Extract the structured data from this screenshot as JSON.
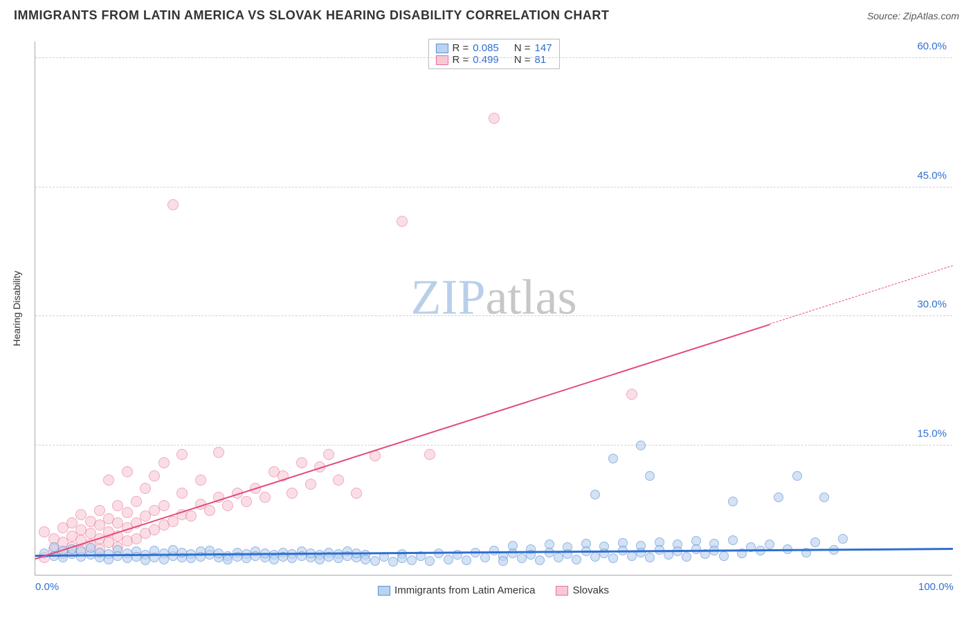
{
  "header": {
    "title": "IMMIGRANTS FROM LATIN AMERICA VS SLOVAK HEARING DISABILITY CORRELATION CHART",
    "source": "Source: ZipAtlas.com"
  },
  "watermark": {
    "text_a": "ZIP",
    "text_b": "atlas",
    "color_a": "#b9cfe9",
    "color_b": "#c7c7c7"
  },
  "axes": {
    "ylabel": "Hearing Disability",
    "xlim": [
      0,
      100
    ],
    "ylim": [
      0,
      62
    ],
    "yticks": [
      {
        "v": 15,
        "l": "15.0%"
      },
      {
        "v": 30,
        "l": "30.0%"
      },
      {
        "v": 45,
        "l": "45.0%"
      },
      {
        "v": 60,
        "l": "60.0%"
      }
    ],
    "xticks": [
      {
        "v": 0,
        "l": "0.0%"
      },
      {
        "v": 100,
        "l": "100.0%"
      }
    ],
    "tick_color": "#2f6fd0",
    "grid_color": "#d0d0d0"
  },
  "legend_top": {
    "rows": [
      {
        "swatch_fill": "#bcd3ef",
        "swatch_stroke": "#5b8fd6",
        "r_label": "R =",
        "r": "0.085",
        "n_label": "N =",
        "n": "147"
      },
      {
        "swatch_fill": "#f7c9d6",
        "swatch_stroke": "#e86f94",
        "r_label": "R =",
        "r": "0.499",
        "n_label": "N =",
        "n": " 81"
      }
    ],
    "label_color": "#333",
    "value_color": "#2f6fd0"
  },
  "legend_bottom": {
    "items": [
      {
        "swatch_fill": "#bcd3ef",
        "swatch_stroke": "#5b8fd6",
        "label": "Immigrants from Latin America"
      },
      {
        "swatch_fill": "#f7c9d6",
        "swatch_stroke": "#e86f94",
        "label": "Slovaks"
      }
    ]
  },
  "series": {
    "blue": {
      "fill": "#bcd3ef",
      "stroke": "#5b8fd6",
      "opacity": 0.65,
      "radius": 7,
      "points": [
        [
          1,
          2.5
        ],
        [
          2,
          2.2
        ],
        [
          2,
          3.2
        ],
        [
          3,
          2
        ],
        [
          3,
          2.8
        ],
        [
          4,
          2.4
        ],
        [
          4,
          3
        ],
        [
          5,
          2.1
        ],
        [
          5,
          2.7
        ],
        [
          6,
          2.3
        ],
        [
          6,
          3.1
        ],
        [
          7,
          2
        ],
        [
          7,
          2.6
        ],
        [
          8,
          2.4
        ],
        [
          8,
          1.8
        ],
        [
          9,
          2.9
        ],
        [
          9,
          2.2
        ],
        [
          10,
          2.5
        ],
        [
          10,
          1.9
        ],
        [
          11,
          2.7
        ],
        [
          11,
          2.1
        ],
        [
          12,
          2.3
        ],
        [
          12,
          1.7
        ],
        [
          13,
          2.8
        ],
        [
          13,
          2
        ],
        [
          14,
          2.5
        ],
        [
          14,
          1.8
        ],
        [
          15,
          2.2
        ],
        [
          15,
          2.9
        ],
        [
          16,
          2
        ],
        [
          16,
          2.6
        ],
        [
          17,
          2.4
        ],
        [
          17,
          1.9
        ],
        [
          18,
          2.7
        ],
        [
          18,
          2.1
        ],
        [
          19,
          2.3
        ],
        [
          19,
          2.8
        ],
        [
          20,
          2
        ],
        [
          20,
          2.5
        ],
        [
          21,
          2.2
        ],
        [
          21,
          1.8
        ],
        [
          22,
          2.6
        ],
        [
          22,
          2.1
        ],
        [
          23,
          2.4
        ],
        [
          23,
          1.9
        ],
        [
          24,
          2.7
        ],
        [
          24,
          2.2
        ],
        [
          25,
          2
        ],
        [
          25,
          2.5
        ],
        [
          26,
          2.3
        ],
        [
          26,
          1.8
        ],
        [
          27,
          2.6
        ],
        [
          27,
          2.1
        ],
        [
          28,
          2.4
        ],
        [
          28,
          1.9
        ],
        [
          29,
          2.7
        ],
        [
          29,
          2.2
        ],
        [
          30,
          2
        ],
        [
          30,
          2.5
        ],
        [
          31,
          2.3
        ],
        [
          31,
          1.8
        ],
        [
          32,
          2.6
        ],
        [
          32,
          2.1
        ],
        [
          33,
          2.4
        ],
        [
          33,
          1.9
        ],
        [
          34,
          2.7
        ],
        [
          34,
          2.2
        ],
        [
          35,
          2
        ],
        [
          35,
          2.5
        ],
        [
          36,
          2.3
        ],
        [
          36,
          1.8
        ],
        [
          37,
          1.6
        ],
        [
          38,
          2.1
        ],
        [
          39,
          1.5
        ],
        [
          40,
          2.4
        ],
        [
          40,
          1.9
        ],
        [
          41,
          1.7
        ],
        [
          42,
          2.2
        ],
        [
          43,
          1.6
        ],
        [
          44,
          2.5
        ],
        [
          45,
          1.8
        ],
        [
          46,
          2.3
        ],
        [
          47,
          1.7
        ],
        [
          48,
          2.6
        ],
        [
          49,
          2
        ],
        [
          50,
          2.8
        ],
        [
          51,
          2.2
        ],
        [
          51,
          1.6
        ],
        [
          52,
          3.4
        ],
        [
          52,
          2.5
        ],
        [
          53,
          1.9
        ],
        [
          54,
          3
        ],
        [
          54,
          2.3
        ],
        [
          55,
          1.7
        ],
        [
          56,
          3.5
        ],
        [
          56,
          2.6
        ],
        [
          57,
          2
        ],
        [
          58,
          3.2
        ],
        [
          58,
          2.4
        ],
        [
          59,
          1.8
        ],
        [
          60,
          3.6
        ],
        [
          60,
          2.7
        ],
        [
          61,
          2.1
        ],
        [
          61,
          9.3
        ],
        [
          62,
          3.3
        ],
        [
          62,
          2.5
        ],
        [
          63,
          1.9
        ],
        [
          63,
          13.5
        ],
        [
          64,
          3.7
        ],
        [
          64,
          2.8
        ],
        [
          65,
          2.2
        ],
        [
          66,
          3.4
        ],
        [
          66,
          2.6
        ],
        [
          66,
          15
        ],
        [
          67,
          2
        ],
        [
          67,
          11.5
        ],
        [
          68,
          3.8
        ],
        [
          68,
          2.9
        ],
        [
          69,
          2.3
        ],
        [
          70,
          3.5
        ],
        [
          70,
          2.7
        ],
        [
          71,
          2.1
        ],
        [
          72,
          3.9
        ],
        [
          72,
          3
        ],
        [
          73,
          2.4
        ],
        [
          74,
          3.6
        ],
        [
          74,
          2.8
        ],
        [
          75,
          2.2
        ],
        [
          76,
          4
        ],
        [
          76,
          8.5
        ],
        [
          77,
          2.5
        ],
        [
          78,
          3.2
        ],
        [
          79,
          2.8
        ],
        [
          80,
          3.5
        ],
        [
          81,
          9
        ],
        [
          82,
          3
        ],
        [
          83,
          11.5
        ],
        [
          84,
          2.6
        ],
        [
          85,
          3.8
        ],
        [
          86,
          9
        ],
        [
          87,
          2.9
        ],
        [
          88,
          4.2
        ]
      ],
      "trend": {
        "y0": 2.4,
        "y1": 3.2,
        "color": "#2f6fd0",
        "width": 3
      }
    },
    "pink": {
      "fill": "#f7c9d6",
      "stroke": "#e86f94",
      "opacity": 0.6,
      "radius": 8,
      "points": [
        [
          1,
          2
        ],
        [
          1,
          5
        ],
        [
          2,
          3
        ],
        [
          2,
          4.2
        ],
        [
          3,
          2.5
        ],
        [
          3,
          3.8
        ],
        [
          3,
          5.5
        ],
        [
          4,
          3.2
        ],
        [
          4,
          4.5
        ],
        [
          4,
          6
        ],
        [
          5,
          2.8
        ],
        [
          5,
          4
        ],
        [
          5,
          5.2
        ],
        [
          5,
          7
        ],
        [
          6,
          3.5
        ],
        [
          6,
          4.8
        ],
        [
          6,
          6.2
        ],
        [
          7,
          3
        ],
        [
          7,
          4.2
        ],
        [
          7,
          5.8
        ],
        [
          7,
          7.5
        ],
        [
          8,
          3.8
        ],
        [
          8,
          5
        ],
        [
          8,
          6.5
        ],
        [
          8,
          11
        ],
        [
          9,
          3.2
        ],
        [
          9,
          4.5
        ],
        [
          9,
          6
        ],
        [
          9,
          8
        ],
        [
          10,
          3.9
        ],
        [
          10,
          5.5
        ],
        [
          10,
          7.2
        ],
        [
          10,
          12
        ],
        [
          11,
          4.2
        ],
        [
          11,
          6
        ],
        [
          11,
          8.5
        ],
        [
          12,
          4.8
        ],
        [
          12,
          6.8
        ],
        [
          12,
          10
        ],
        [
          13,
          5.2
        ],
        [
          13,
          7.5
        ],
        [
          13,
          11.5
        ],
        [
          14,
          5.8
        ],
        [
          14,
          8
        ],
        [
          14,
          13
        ],
        [
          15,
          43
        ],
        [
          15,
          6.2
        ],
        [
          16,
          7
        ],
        [
          16,
          9.5
        ],
        [
          16,
          14
        ],
        [
          17,
          6.8
        ],
        [
          18,
          8.2
        ],
        [
          18,
          11
        ],
        [
          19,
          7.5
        ],
        [
          20,
          9
        ],
        [
          20,
          14.2
        ],
        [
          21,
          8
        ],
        [
          22,
          9.5
        ],
        [
          23,
          8.5
        ],
        [
          24,
          10
        ],
        [
          25,
          9
        ],
        [
          26,
          12
        ],
        [
          27,
          11.5
        ],
        [
          28,
          9.5
        ],
        [
          29,
          13
        ],
        [
          30,
          10.5
        ],
        [
          31,
          12.5
        ],
        [
          32,
          14
        ],
        [
          33,
          11
        ],
        [
          35,
          9.5
        ],
        [
          37,
          13.8
        ],
        [
          40,
          41
        ],
        [
          43,
          14
        ],
        [
          50,
          53
        ],
        [
          65,
          21
        ]
      ],
      "trend": {
        "y0": 2.0,
        "y1": 36.0,
        "color": "#e14b78",
        "width": 2,
        "dash_after_x": 80
      }
    }
  }
}
